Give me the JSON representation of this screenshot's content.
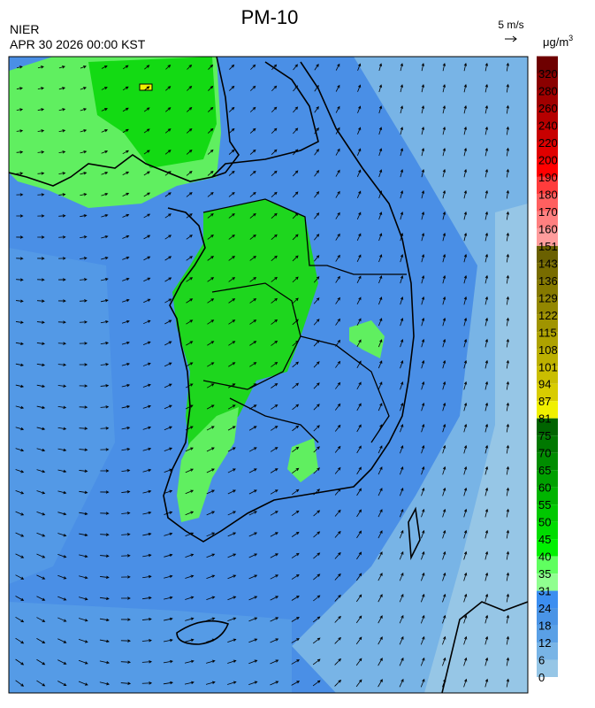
{
  "header": {
    "title": "PM-10",
    "agency": "NIER",
    "datetime": "APR 30 2026 00:00 KST",
    "wind_scale": "5 m/s",
    "unit": "μg/m",
    "unit_sup": "3"
  },
  "colorbar": {
    "top_color": "#6e0000",
    "levels": [
      {
        "label": "320",
        "color": "#8a0000"
      },
      {
        "label": "280",
        "color": "#a00000"
      },
      {
        "label": "260",
        "color": "#b50000"
      },
      {
        "label": "240",
        "color": "#c80000"
      },
      {
        "label": "220",
        "color": "#e00000"
      },
      {
        "label": "200",
        "color": "#ff0000"
      },
      {
        "label": "190",
        "color": "#ff3c3c"
      },
      {
        "label": "180",
        "color": "#ff6060"
      },
      {
        "label": "170",
        "color": "#ff8080"
      },
      {
        "label": "160",
        "color": "#ff9c9c"
      },
      {
        "label": "151",
        "color": "#6a6000"
      },
      {
        "label": "143",
        "color": "#786c00"
      },
      {
        "label": "136",
        "color": "#857900"
      },
      {
        "label": "129",
        "color": "#938700"
      },
      {
        "label": "122",
        "color": "#a09400"
      },
      {
        "label": "115",
        "color": "#aea200"
      },
      {
        "label": "108",
        "color": "#bcb000"
      },
      {
        "label": "101",
        "color": "#cabe00"
      },
      {
        "label": "94",
        "color": "#d8cc00"
      },
      {
        "label": "87",
        "color": "#f0f000"
      },
      {
        "label": "81",
        "color": "#006400"
      },
      {
        "label": "75",
        "color": "#007800"
      },
      {
        "label": "70",
        "color": "#008c00"
      },
      {
        "label": "65",
        "color": "#00a000"
      },
      {
        "label": "60",
        "color": "#00b400"
      },
      {
        "label": "55",
        "color": "#00c800"
      },
      {
        "label": "50",
        "color": "#00dc00"
      },
      {
        "label": "45",
        "color": "#00f000"
      },
      {
        "label": "40",
        "color": "#60ff60"
      },
      {
        "label": "35",
        "color": "#90ff90"
      },
      {
        "label": "31",
        "color": "#3c8ef0"
      },
      {
        "label": "24",
        "color": "#4a94e6"
      },
      {
        "label": "18",
        "color": "#5aa0e6"
      },
      {
        "label": "12",
        "color": "#78b4e6"
      },
      {
        "label": "6",
        "color": "#96c6e6"
      },
      {
        "label": "0",
        "color": null
      }
    ]
  }
}
